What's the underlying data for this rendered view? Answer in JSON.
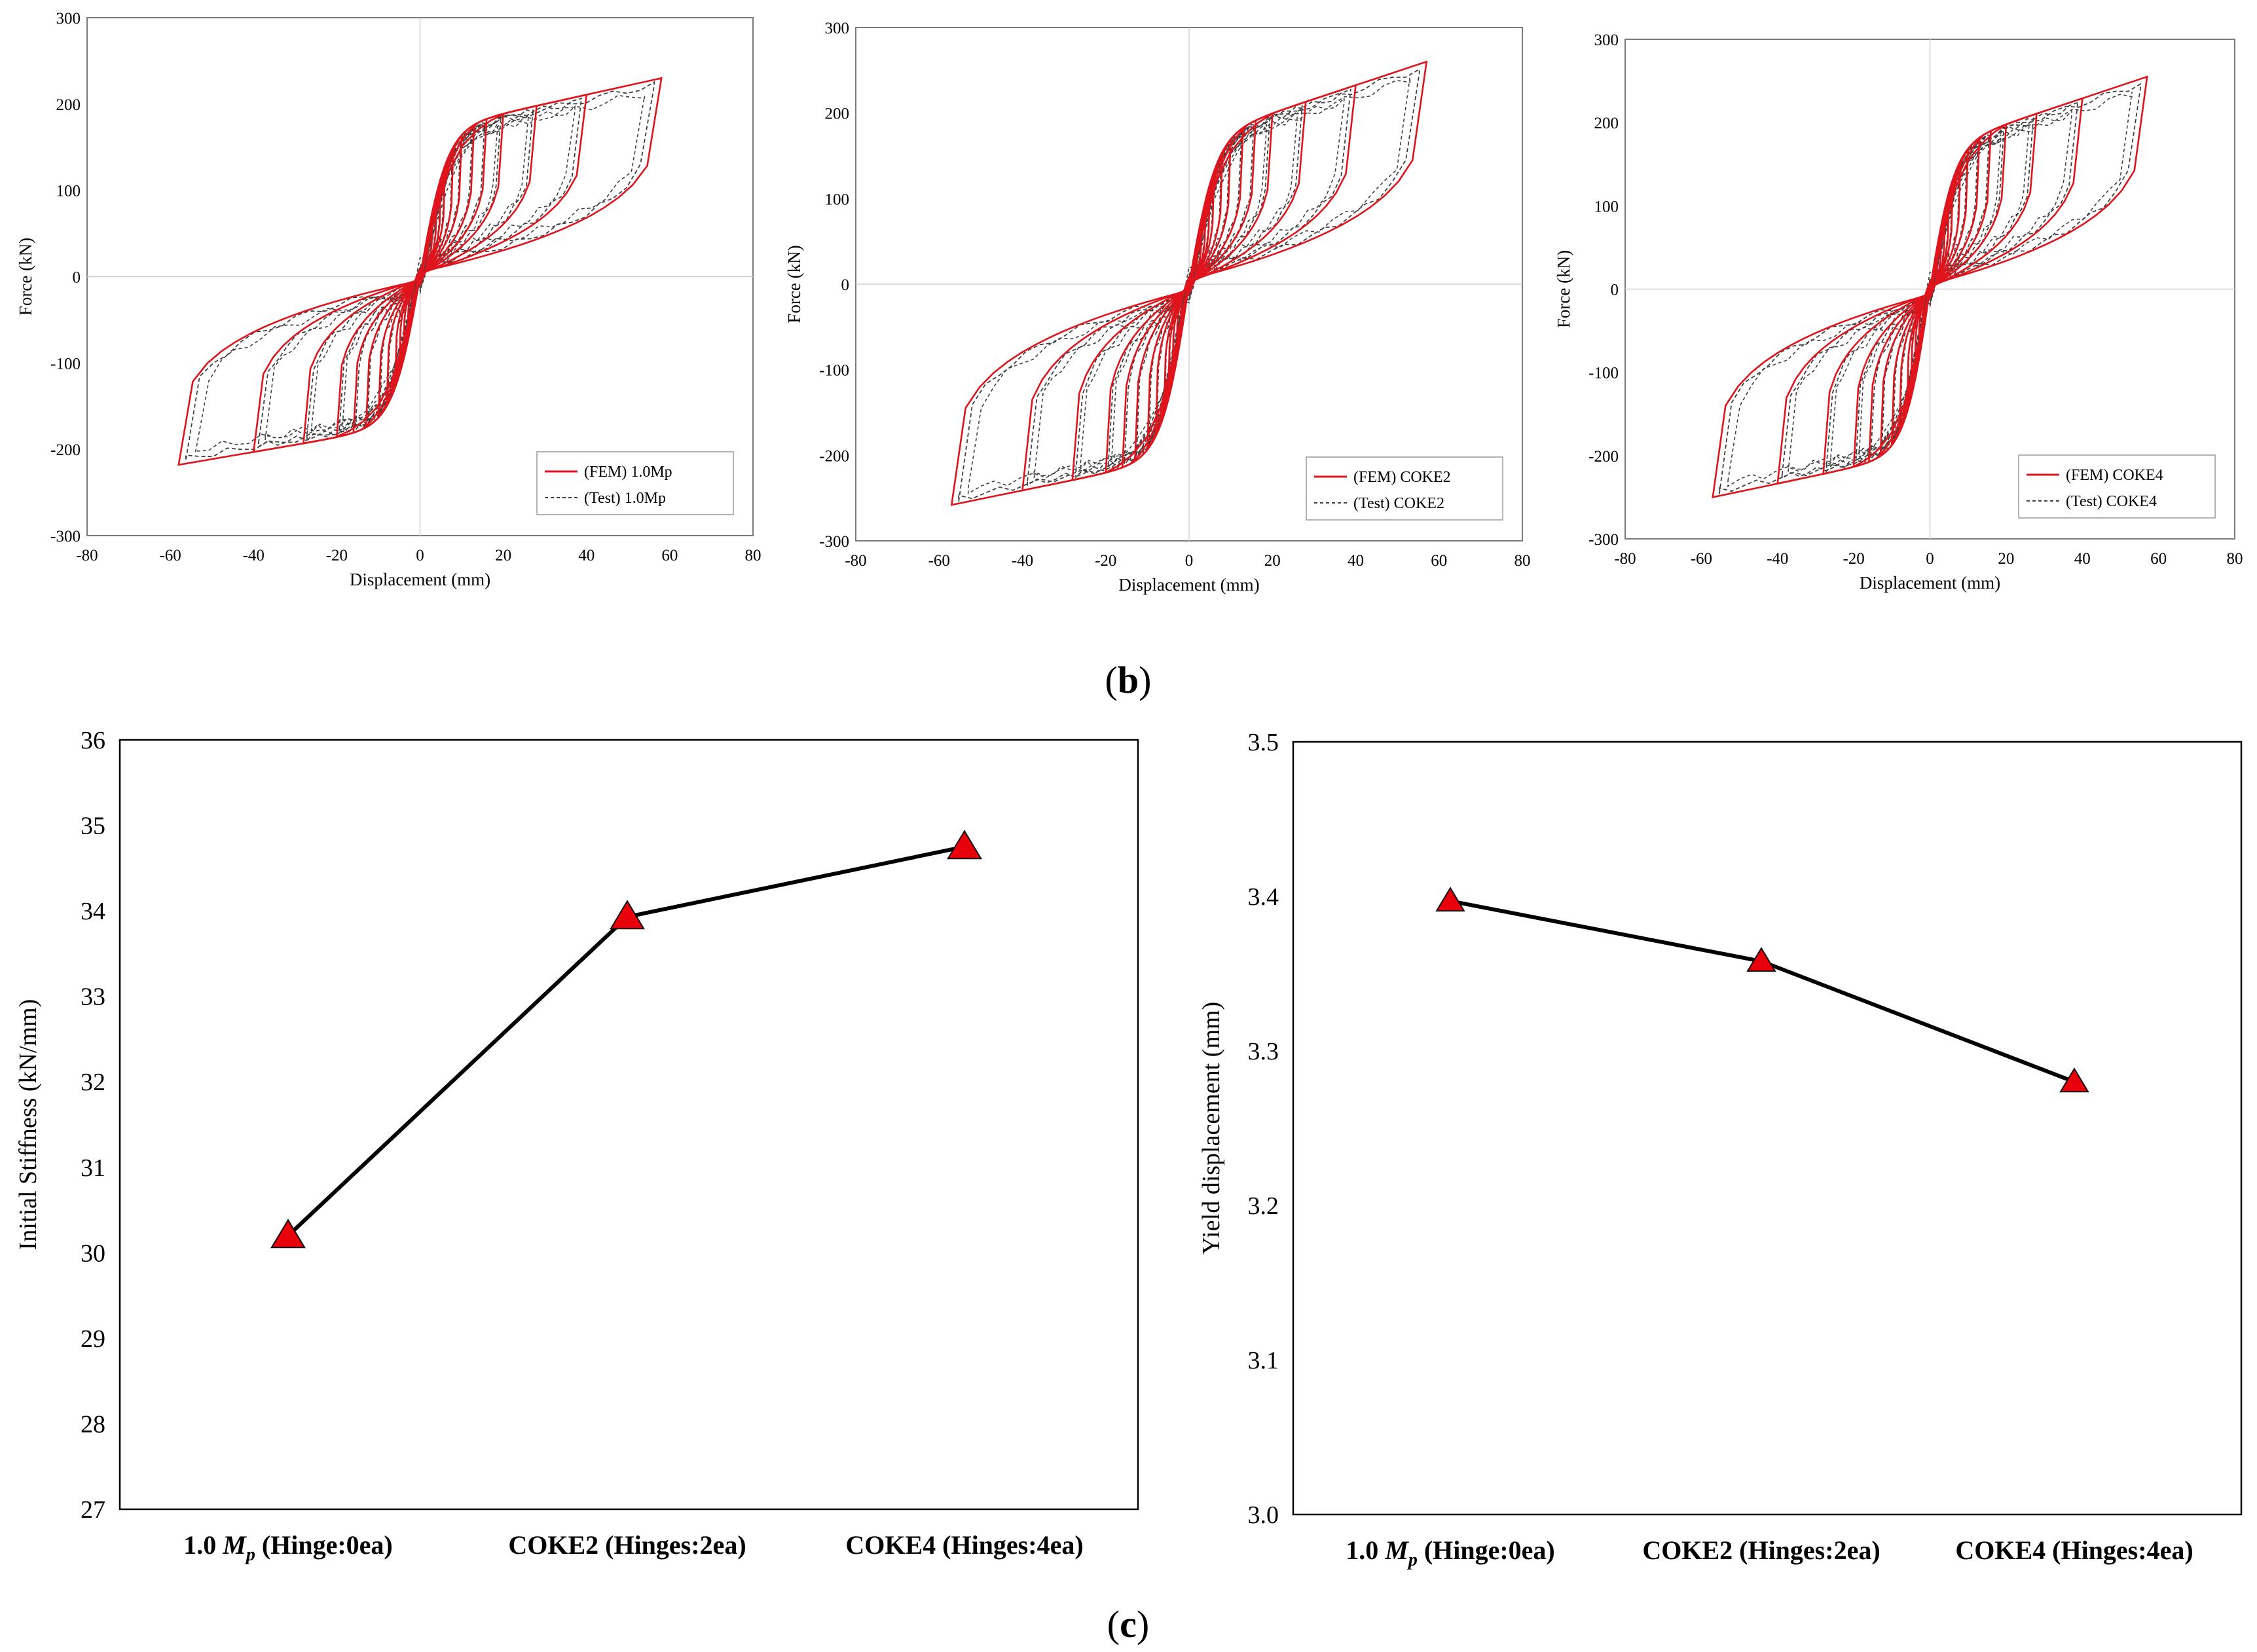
{
  "panel_labels": {
    "b_open": "(",
    "b_letter": "b",
    "b_close": ")",
    "c_open": "(",
    "c_letter": "c",
    "c_close": ")"
  },
  "colors": {
    "fem": "#e0141c",
    "test": "#404040",
    "line": "#000000",
    "marker": "#e8000b"
  },
  "chart_data": [
    {
      "type": "line",
      "id": "hyst-1",
      "title": "",
      "xlabel": "Displacement (mm)",
      "ylabel": "Force (kN)",
      "xlim": [
        -80,
        80
      ],
      "ylim": [
        -300,
        300
      ],
      "xticks": [
        -80,
        -60,
        -40,
        -20,
        0,
        20,
        40,
        60,
        80
      ],
      "yticks": [
        -300,
        -200,
        -100,
        0,
        100,
        200,
        300
      ],
      "legend": [
        "(FEM) 1.0Mp",
        "(Test) 1.0Mp"
      ],
      "legend_placement": "bottom-right",
      "peak_force": 230,
      "min_force": -218,
      "amplitudes": [
        2,
        3,
        4,
        5,
        6,
        8,
        10,
        13,
        16,
        20,
        28,
        40,
        58
      ]
    },
    {
      "type": "line",
      "id": "hyst-2",
      "title": "",
      "xlabel": "Displacement (mm)",
      "ylabel": "Force (kN)",
      "xlim": [
        -80,
        80
      ],
      "ylim": [
        -300,
        300
      ],
      "xticks": [
        -80,
        -60,
        -40,
        -20,
        0,
        20,
        40,
        60,
        80
      ],
      "yticks": [
        -300,
        -200,
        -100,
        0,
        100,
        200,
        300
      ],
      "legend": [
        "(FEM) COKE2",
        "(Test) COKE2"
      ],
      "legend_placement": "bottom-right",
      "peak_force": 260,
      "min_force": -258,
      "amplitudes": [
        2,
        3,
        4,
        5,
        6,
        8,
        10,
        13,
        16,
        20,
        28,
        40,
        57
      ]
    },
    {
      "type": "line",
      "id": "hyst-3",
      "title": "",
      "xlabel": "Displacement (mm)",
      "ylabel": "Force (kN)",
      "xlim": [
        -80,
        80
      ],
      "ylim": [
        -300,
        300
      ],
      "xticks": [
        -80,
        -60,
        -40,
        -20,
        0,
        20,
        40,
        60,
        80
      ],
      "yticks": [
        -300,
        -200,
        -100,
        0,
        100,
        200,
        300
      ],
      "legend": [
        "(FEM) COKE4",
        "(Test) COKE4"
      ],
      "legend_placement": "bottom-right",
      "peak_force": 255,
      "min_force": -250,
      "amplitudes": [
        2,
        3,
        4,
        5,
        6,
        8,
        10,
        13,
        16,
        20,
        28,
        40,
        57
      ]
    },
    {
      "type": "line",
      "id": "stiffness",
      "title": "",
      "xlabel": "",
      "ylabel": "Initial Stiffness (kN/mm)",
      "ylim": [
        27,
        36
      ],
      "yticks": [
        27,
        28,
        29,
        30,
        31,
        32,
        33,
        34,
        35,
        36
      ],
      "categories": [
        {
          "pre": "1.0 ",
          "sym": "M",
          "sub": "p",
          "post": " (Hinge:0ea)"
        },
        {
          "pre": "COKE2 (Hinges:2ea)",
          "sym": "",
          "sub": "",
          "post": ""
        },
        {
          "pre": "COKE4 (Hinges:4ea)",
          "sym": "",
          "sub": "",
          "post": ""
        }
      ],
      "values": [
        30.2,
        33.93,
        34.75
      ],
      "marker": "triangle"
    },
    {
      "type": "line",
      "id": "yield",
      "title": "",
      "xlabel": "",
      "ylabel": "Yield displacement (mm)",
      "ylim": [
        3.0,
        3.5
      ],
      "yticks": [
        "3.0",
        "3.1",
        "3.2",
        "3.3",
        "3.4",
        "3.5"
      ],
      "categories": [
        {
          "pre": "1.0 ",
          "sym": "M",
          "sub": "p",
          "post": " (Hinge:0ea)"
        },
        {
          "pre": "COKE2 (Hinges:2ea)",
          "sym": "",
          "sub": "",
          "post": ""
        },
        {
          "pre": "COKE4 (Hinges:4ea)",
          "sym": "",
          "sub": "",
          "post": ""
        }
      ],
      "values": [
        3.397,
        3.358,
        3.28
      ],
      "marker": "triangle"
    }
  ]
}
